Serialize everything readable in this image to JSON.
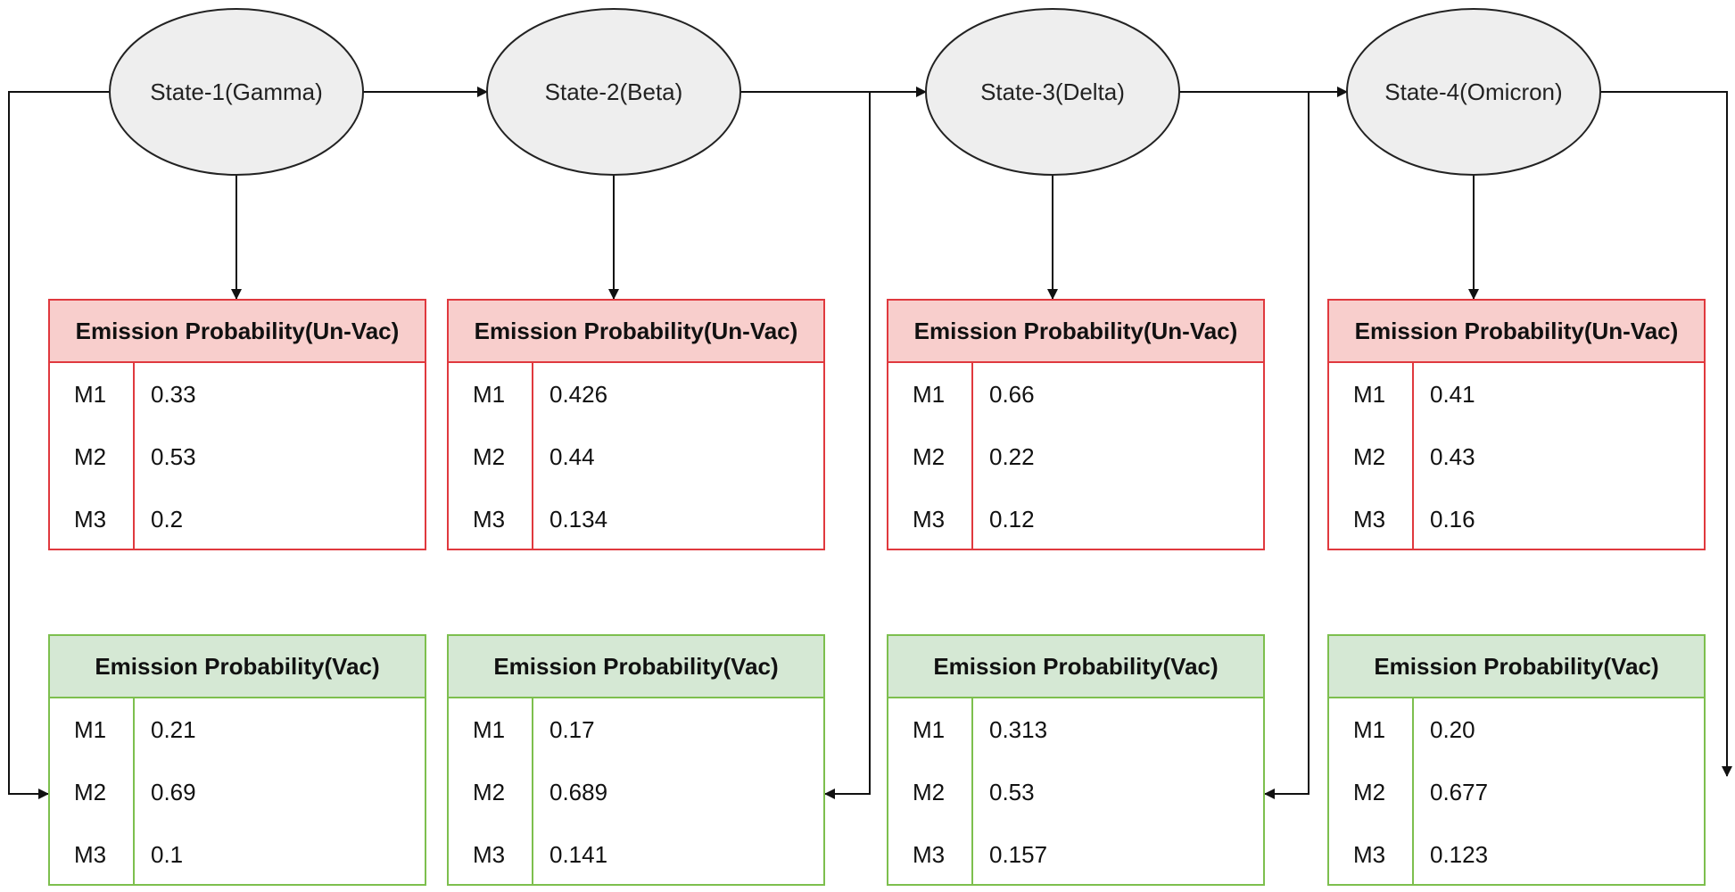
{
  "states": [
    {
      "label": "State-1(Gamma)",
      "unvac": {
        "title": "Emission Probability(Un-Vac)",
        "rows": [
          {
            "key": "M1",
            "value": "0.33"
          },
          {
            "key": "M2",
            "value": "0.53"
          },
          {
            "key": "M3",
            "value": "0.2"
          }
        ]
      },
      "vac": {
        "title": "Emission Probability(Vac)",
        "rows": [
          {
            "key": "M1",
            "value": "0.21"
          },
          {
            "key": "M2",
            "value": "0.69"
          },
          {
            "key": "M3",
            "value": "0.1"
          }
        ]
      }
    },
    {
      "label": "State-2(Beta)",
      "unvac": {
        "title": "Emission Probability(Un-Vac)",
        "rows": [
          {
            "key": "M1",
            "value": "0.426"
          },
          {
            "key": "M2",
            "value": "0.44"
          },
          {
            "key": "M3",
            "value": "0.134"
          }
        ]
      },
      "vac": {
        "title": "Emission Probability(Vac)",
        "rows": [
          {
            "key": "M1",
            "value": "0.17"
          },
          {
            "key": "M2",
            "value": "0.689"
          },
          {
            "key": "M3",
            "value": "0.141"
          }
        ]
      }
    },
    {
      "label": "State-3(Delta)",
      "unvac": {
        "title": "Emission Probability(Un-Vac)",
        "rows": [
          {
            "key": "M1",
            "value": "0.66"
          },
          {
            "key": "M2",
            "value": "0.22"
          },
          {
            "key": "M3",
            "value": "0.12"
          }
        ]
      },
      "vac": {
        "title": "Emission Probability(Vac)",
        "rows": [
          {
            "key": "M1",
            "value": "0.313"
          },
          {
            "key": "M2",
            "value": "0.53"
          },
          {
            "key": "M3",
            "value": "0.157"
          }
        ]
      }
    },
    {
      "label": "State-4(Omicron)",
      "unvac": {
        "title": "Emission Probability(Un-Vac)",
        "rows": [
          {
            "key": "M1",
            "value": "0.41"
          },
          {
            "key": "M2",
            "value": "0.43"
          },
          {
            "key": "M3",
            "value": "0.16"
          }
        ]
      },
      "vac": {
        "title": "Emission Probability(Vac)",
        "rows": [
          {
            "key": "M1",
            "value": "0.20"
          },
          {
            "key": "M2",
            "value": "0.677"
          },
          {
            "key": "M3",
            "value": "0.123"
          }
        ]
      }
    }
  ],
  "colors": {
    "state_fill": "#eeeeee",
    "state_stroke": "#222222",
    "unvac_border": "#e0393e",
    "unvac_header": "#f8cecc",
    "vac_border": "#7dbf4e",
    "vac_header": "#d5e8d4",
    "connector": "#111111"
  }
}
